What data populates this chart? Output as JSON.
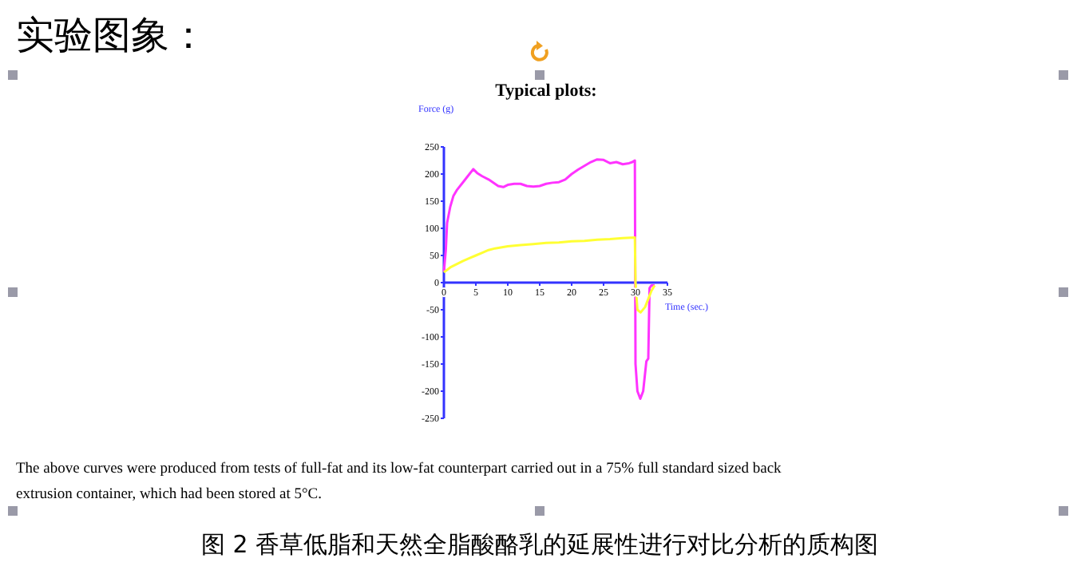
{
  "chart_data": {
    "type": "line",
    "title": "Typical plots:",
    "xlabel": "Time (sec.)",
    "ylabel": "Force (g)",
    "annotations": [
      "实验图象：",
      "The above curves were produced from tests of full-fat and its low-fat counterpart carried out in a 75% full standard sized back extrusion container, which had been stored at 5°C.",
      "图 2  香草低脂和天然全脂酸酪乳的延展性进行对比分析的质构图"
    ],
    "xlim": [
      0,
      35
    ],
    "xticks": [
      0,
      5,
      10,
      15,
      20,
      25,
      30,
      35
    ],
    "ylim": [
      -250,
      250
    ],
    "yticks": [
      -250,
      -200,
      -150,
      -100,
      -50,
      0,
      50,
      100,
      150,
      200,
      250
    ],
    "grid": false,
    "marker": "none",
    "line_style": "solid",
    "series": [
      {
        "color": "#ff33ff",
        "x": [
          0,
          0.3,
          0.5,
          1,
          1.5,
          2,
          3,
          4,
          4.6,
          5.2,
          6,
          7,
          7.5,
          8.5,
          9.3,
          10,
          11,
          12,
          13,
          14,
          15,
          16,
          17,
          18,
          19,
          20,
          21,
          22,
          23,
          24,
          25,
          26,
          27,
          28,
          29,
          29.5,
          29.9,
          30,
          30.3,
          30.75,
          31.2,
          31.7,
          32,
          32.2,
          32.5,
          33
        ],
        "values": [
          20,
          60,
          110,
          140,
          160,
          170,
          185,
          200,
          209,
          202,
          196,
          190,
          186,
          178,
          176,
          180,
          182,
          182,
          178,
          177,
          178,
          182,
          184,
          185,
          190,
          200,
          208,
          215,
          222,
          227,
          226,
          220,
          222,
          218,
          220,
          222,
          225,
          -150,
          -200,
          -214,
          -200,
          -145,
          -140,
          -10,
          -5,
          -5
        ]
      },
      {
        "color": "#ffff33",
        "x": [
          0,
          1,
          2,
          3,
          4,
          5,
          6,
          7,
          8,
          10,
          12,
          14,
          16,
          18,
          20,
          22,
          24,
          26,
          28,
          29.9,
          30,
          30.3,
          30.8,
          31.5,
          32,
          32.5,
          33
        ],
        "values": [
          19,
          28,
          34,
          40,
          45,
          50,
          55,
          60,
          63,
          67,
          69,
          71,
          73,
          74,
          76,
          77,
          79,
          80,
          82,
          83,
          0,
          -50,
          -55,
          -45,
          -30,
          -15,
          -5
        ]
      }
    ]
  }
}
